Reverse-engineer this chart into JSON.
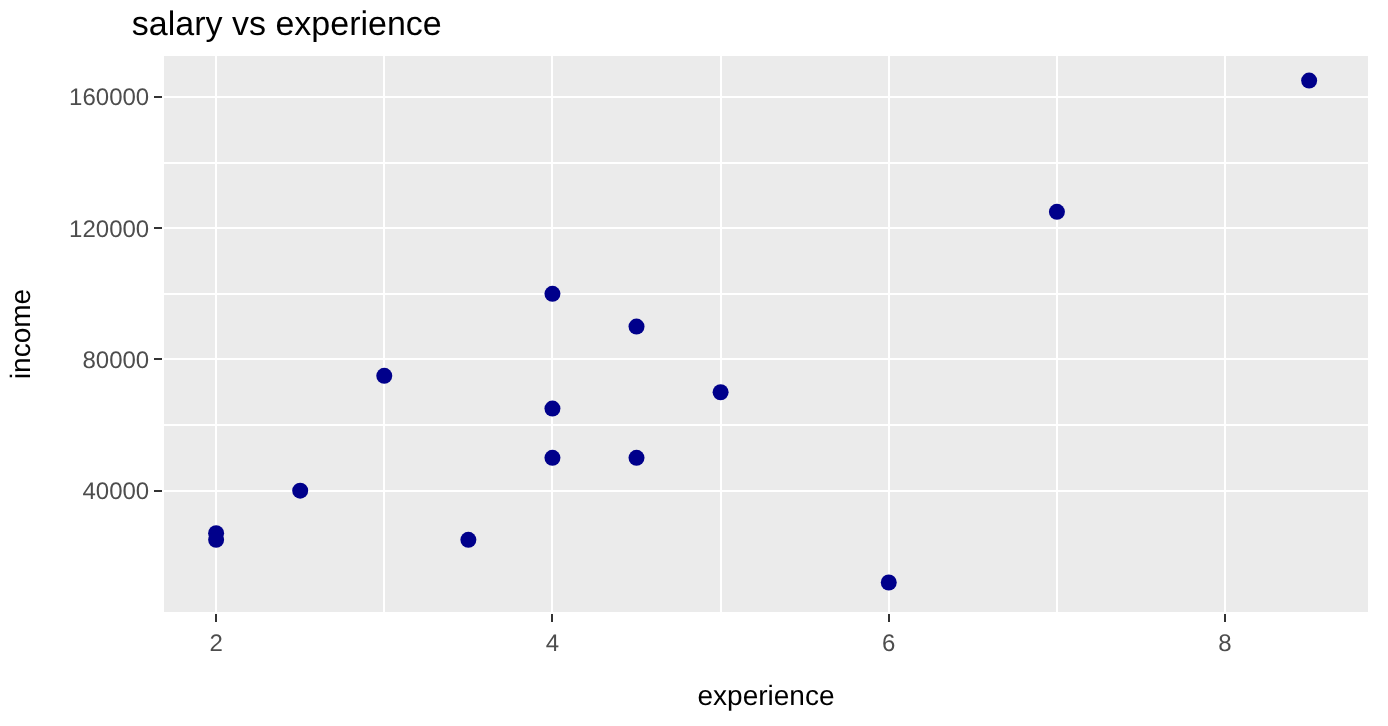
{
  "chart_data": {
    "type": "scatter",
    "title": "salary vs experience",
    "xlabel": "experience",
    "ylabel": "income",
    "x": [
      2,
      2,
      2.5,
      3,
      3.5,
      4,
      4,
      4,
      4.5,
      4.5,
      5,
      6,
      7,
      8.5
    ],
    "series": [
      {
        "color": "#00008b",
        "values": [
          27000,
          25000,
          40000,
          75000,
          25000,
          100000,
          65000,
          50000,
          90000,
          50000,
          70000,
          12000,
          125000,
          165000
        ]
      }
    ],
    "xlim": [
      1.69,
      8.85
    ],
    "ylim": [
      3000,
      172500
    ],
    "xticks": [
      2,
      4,
      6,
      8
    ],
    "yticks": [
      40000,
      80000,
      120000,
      160000
    ],
    "grid": true,
    "marker": "circle"
  }
}
